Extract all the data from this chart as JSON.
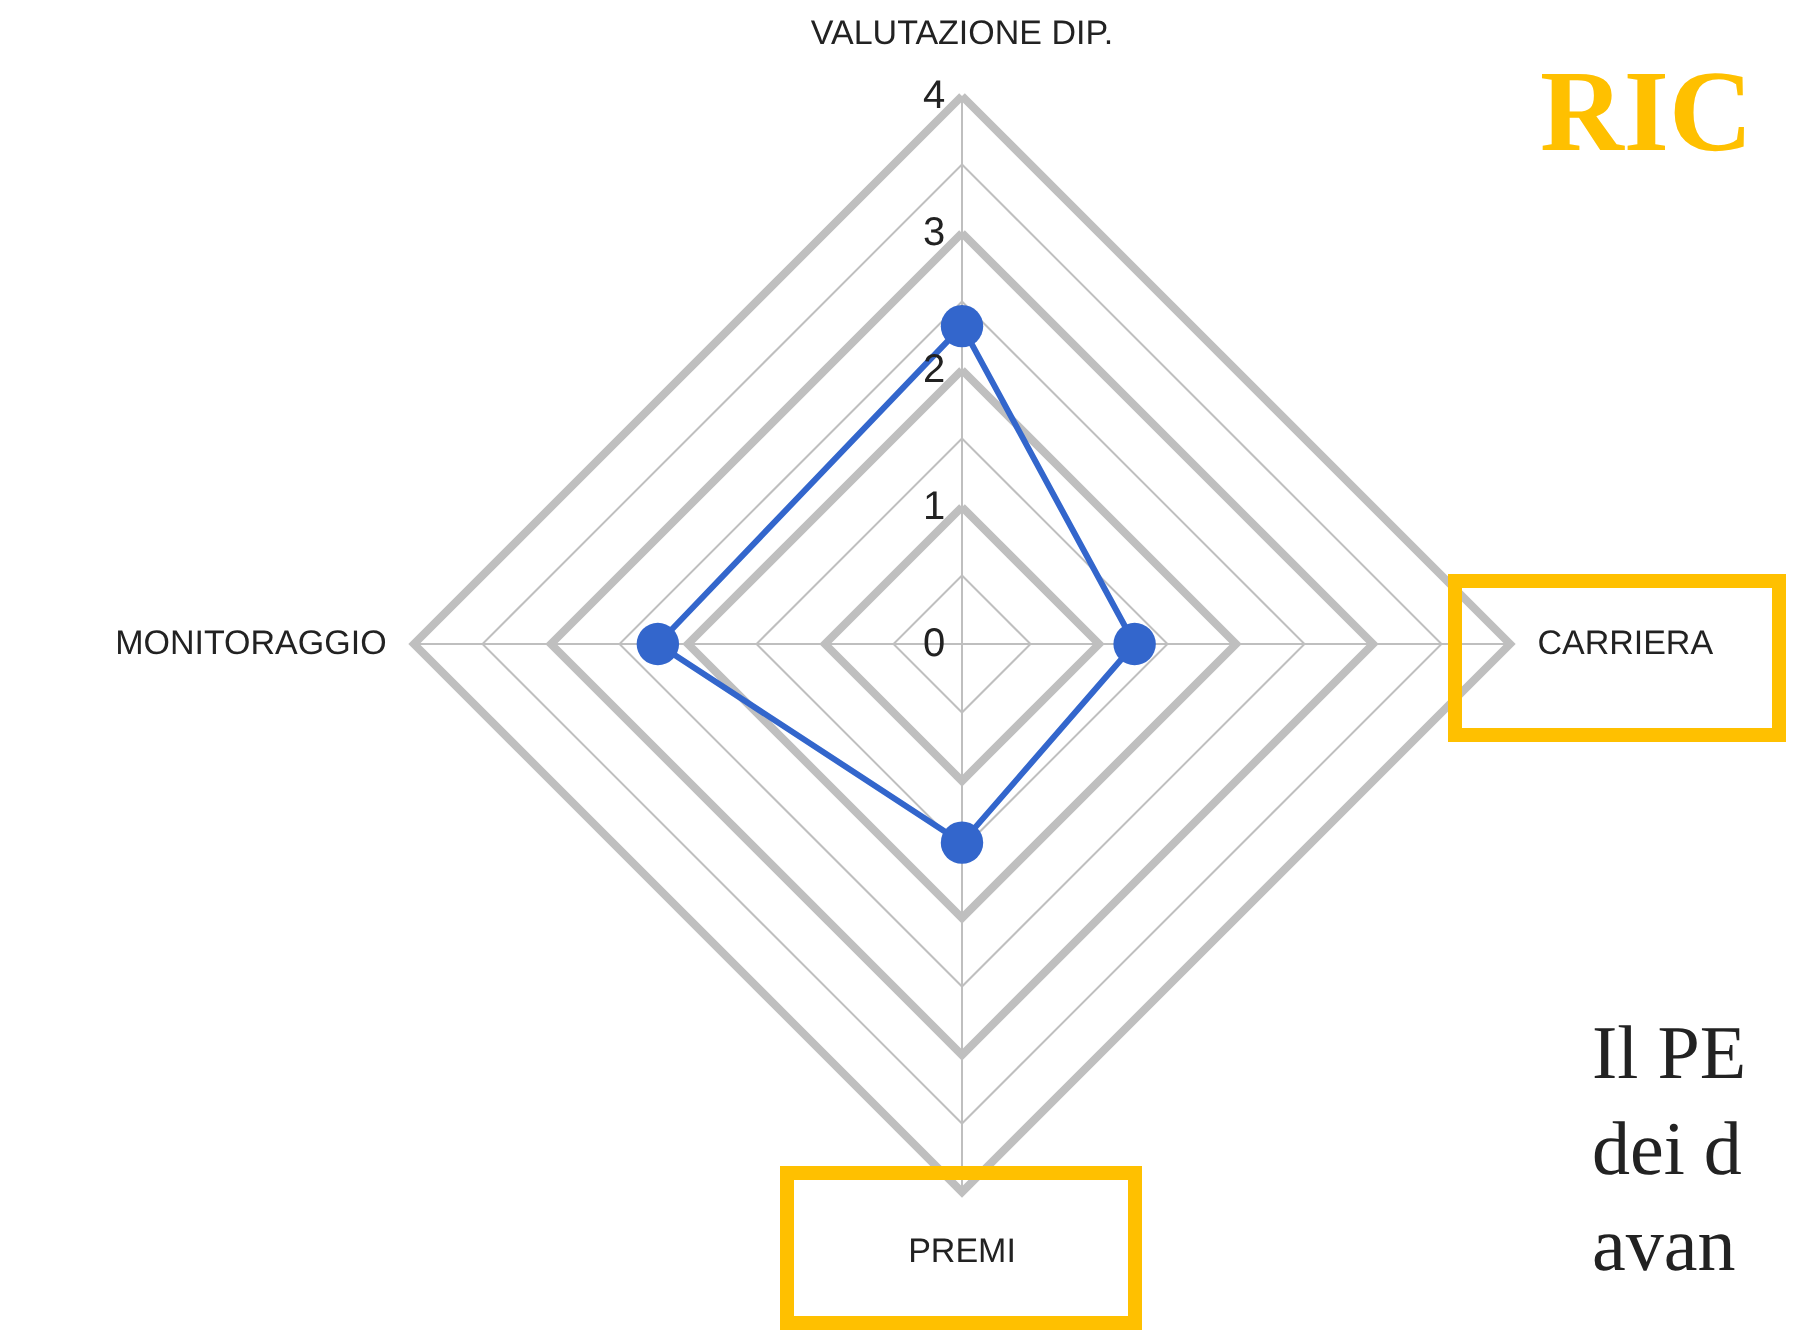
{
  "chart_data": {
    "type": "radar",
    "categories": [
      "VALUTAZIONE DIP.",
      "CARRIERA",
      "PREMI",
      "MONITORAGGIO"
    ],
    "series": [
      {
        "color": "#3366cc",
        "values": [
          2.32,
          1.26,
          1.45,
          2.22
        ]
      }
    ],
    "ylim": [
      0,
      4
    ],
    "yticks": [
      0,
      1,
      2,
      3,
      4
    ],
    "grid": true,
    "marker": "circle",
    "line_style": "solid",
    "annotations": [
      "RIC",
      "Il PE",
      "dei d",
      "avan"
    ]
  }
}
